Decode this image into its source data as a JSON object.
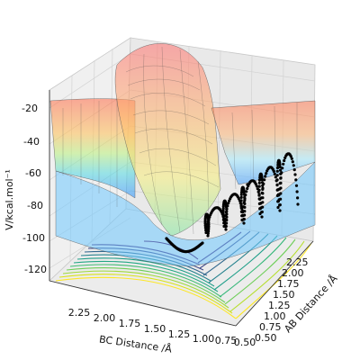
{
  "chart_data": {
    "type": "surface",
    "xlabel": "AB Distance /Å",
    "ylabel": "BC Distance /Å",
    "zlabel": "V/kcal.mol⁻¹",
    "x_ticks": [
      "0.50",
      "0.75",
      "1.00",
      "1.25",
      "1.50",
      "1.75",
      "2.00",
      "2.25"
    ],
    "y_ticks": [
      "0.50",
      "0.75",
      "1.00",
      "1.25",
      "1.50",
      "1.75",
      "2.00",
      "2.25"
    ],
    "z_ticks": [
      "-20",
      "-40",
      "-60",
      "-80",
      "-100",
      "-120"
    ],
    "zlim": [
      -130,
      -15
    ],
    "xlim": [
      0.5,
      2.4
    ],
    "ylim": [
      0.5,
      2.4
    ],
    "grid": true,
    "colormap": "jet",
    "contour_colormap": "viridis",
    "trajectory_color": "#000000"
  }
}
